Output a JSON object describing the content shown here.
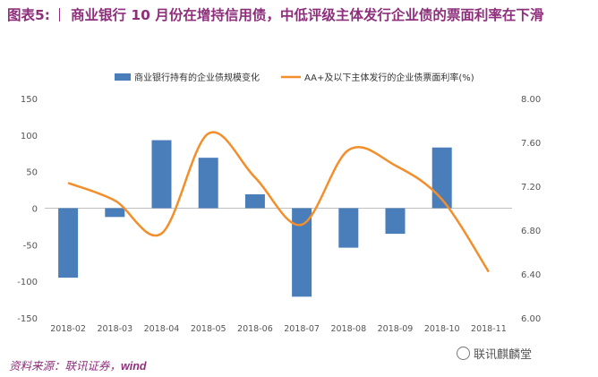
{
  "page": {
    "figure_label": "图表5:",
    "title": "商业银行 10 月份在增持信用债，中低评级主体发行企业债的票面利率在下滑",
    "source_prefix": "资料来源：联讯证券，",
    "source_wind": "wind",
    "watermark": "联讯麒麟堂"
  },
  "chart_data": {
    "type": "bar+line",
    "categories": [
      "2018-02",
      "2018-03",
      "2018-04",
      "2018-05",
      "2018-06",
      "2018-07",
      "2018-08",
      "2018-09",
      "2018-10",
      "2018-11"
    ],
    "series": [
      {
        "name": "商业银行持有的企业债规模变化",
        "type": "bar",
        "axis": "left",
        "color": "#4a7ebb",
        "values": [
          -95,
          -12,
          93,
          69,
          19,
          -121,
          -54,
          -35,
          83,
          null
        ]
      },
      {
        "name": "AA+及以下主体发行的企业债票面利率(%)",
        "type": "line",
        "axis": "right",
        "color": "#f28e2b",
        "values": [
          7.23,
          7.07,
          6.77,
          7.68,
          7.28,
          6.85,
          7.53,
          7.39,
          7.08,
          6.42
        ]
      }
    ],
    "y_left": {
      "min": -150,
      "max": 150,
      "ticks": [
        -150,
        -100,
        -50,
        0,
        50,
        100,
        150
      ]
    },
    "y_right": {
      "min": 6.0,
      "max": 8.0,
      "ticks": [
        "6.00",
        "6.40",
        "6.80",
        "7.20",
        "7.60",
        "8.00"
      ]
    },
    "legend_position": "top",
    "grid": false
  }
}
